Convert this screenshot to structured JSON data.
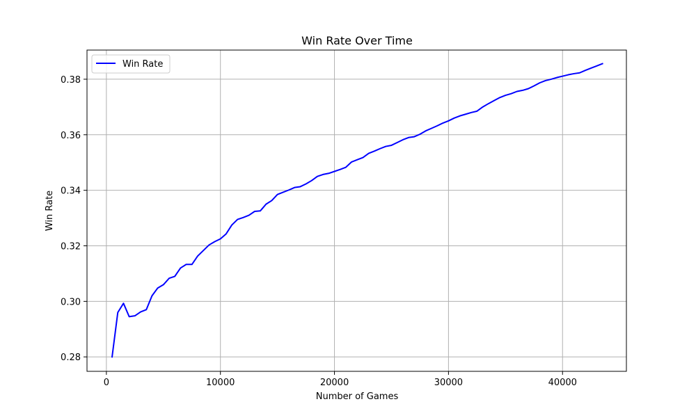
{
  "chart_data": {
    "type": "line",
    "title": "Win Rate Over Time",
    "xlabel": "Number of Games",
    "ylabel": "Win Rate",
    "xlim": [
      -1700,
      45600
    ],
    "ylim": [
      0.2748,
      0.3905
    ],
    "xticks": [
      0,
      10000,
      20000,
      30000,
      40000
    ],
    "xtick_labels": [
      "0",
      "10000",
      "20000",
      "30000",
      "40000"
    ],
    "yticks": [
      0.28,
      0.3,
      0.32,
      0.34,
      0.36,
      0.38
    ],
    "ytick_labels": [
      "0.28",
      "0.30",
      "0.32",
      "0.34",
      "0.36",
      "0.38"
    ],
    "grid": true,
    "legend_position": "upper-left",
    "series": [
      {
        "name": "Win Rate",
        "color": "#0000ff",
        "x": [
          500,
          1000,
          1500,
          2000,
          2500,
          3000,
          3500,
          4000,
          4500,
          5000,
          5500,
          6000,
          6500,
          7000,
          7500,
          8000,
          8500,
          9000,
          9500,
          10000,
          10500,
          11000,
          11500,
          12000,
          12500,
          13000,
          13500,
          14000,
          14500,
          15000,
          15500,
          16000,
          16500,
          17000,
          17500,
          18000,
          18500,
          19000,
          19500,
          20000,
          20500,
          21000,
          21500,
          22000,
          22500,
          23000,
          23500,
          24000,
          24500,
          25000,
          25500,
          26000,
          26500,
          27000,
          27500,
          28000,
          28500,
          29000,
          29500,
          30000,
          30500,
          31000,
          31500,
          32000,
          32500,
          33000,
          33500,
          34000,
          34500,
          35000,
          35500,
          36000,
          36500,
          37000,
          37500,
          38000,
          38500,
          39000,
          39500,
          40000,
          40500,
          41000,
          41500,
          42000,
          42500,
          43000,
          43500
        ],
        "y": [
          0.28,
          0.296,
          0.2993,
          0.2945,
          0.2948,
          0.2962,
          0.297,
          0.302,
          0.3048,
          0.306,
          0.3083,
          0.309,
          0.312,
          0.3133,
          0.3133,
          0.3163,
          0.3183,
          0.3203,
          0.3215,
          0.3225,
          0.3243,
          0.3275,
          0.3295,
          0.3302,
          0.331,
          0.3324,
          0.3326,
          0.335,
          0.3363,
          0.3385,
          0.3393,
          0.3401,
          0.341,
          0.3413,
          0.3423,
          0.3435,
          0.345,
          0.3457,
          0.3461,
          0.3468,
          0.3475,
          0.3483,
          0.3502,
          0.351,
          0.3518,
          0.3533,
          0.3541,
          0.355,
          0.3558,
          0.3562,
          0.3572,
          0.3582,
          0.359,
          0.3593,
          0.3602,
          0.3614,
          0.3623,
          0.3632,
          0.3642,
          0.365,
          0.366,
          0.3668,
          0.3674,
          0.368,
          0.3685,
          0.37,
          0.3712,
          0.3723,
          0.3734,
          0.3742,
          0.3748,
          0.3756,
          0.376,
          0.3766,
          0.3776,
          0.3787,
          0.3795,
          0.38,
          0.3806,
          0.3811,
          0.3816,
          0.382,
          0.3823,
          0.3832,
          0.384,
          0.3848,
          0.3856
        ]
      }
    ]
  }
}
